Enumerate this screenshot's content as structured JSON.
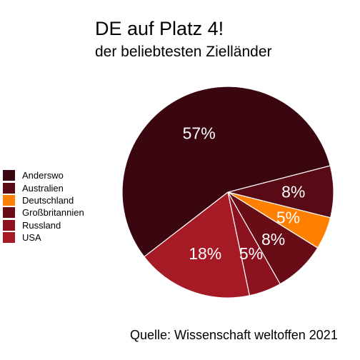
{
  "title": "DE auf Platz 4!",
  "subtitle": "der beliebtesten Zielländer",
  "caption": "Quelle: Wissenschaft weltoffen 2021",
  "chart_data": {
    "type": "pie",
    "legend_position": "left",
    "categories": [
      "Anderswo",
      "Australien",
      "Deutschland",
      "Großbritannien",
      "Russland",
      "USA"
    ],
    "values": [
      57,
      8,
      5,
      8,
      5,
      18
    ],
    "labels": [
      "57%",
      "8%",
      "5%",
      "8%",
      "5%",
      "18%"
    ],
    "colors": [
      "#3a0710",
      "#580b14",
      "#ff8000",
      "#680c16",
      "#8d1220",
      "#a51a24"
    ]
  }
}
